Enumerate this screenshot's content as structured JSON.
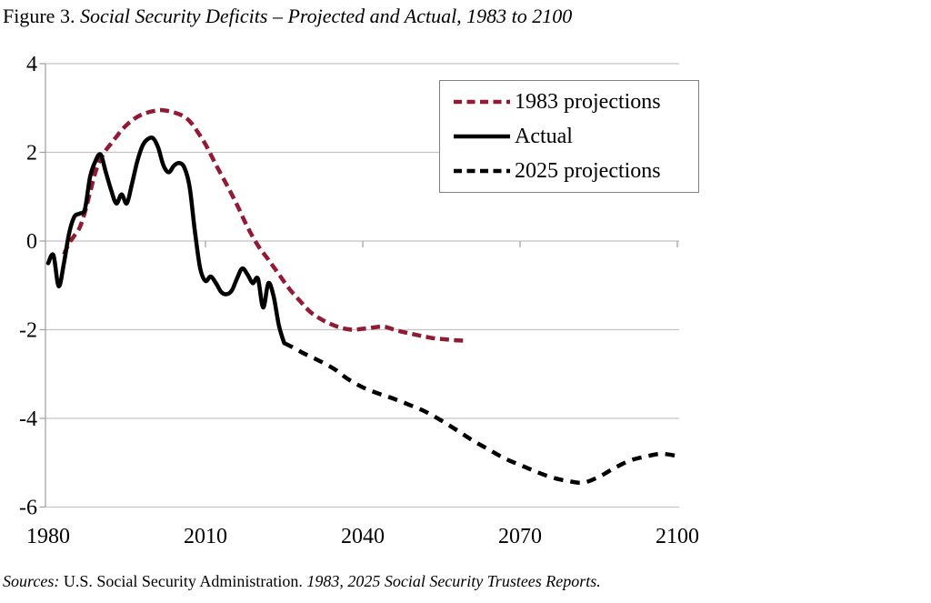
{
  "title": {
    "prefix": "Figure 3.",
    "italic": " Social Security Deficits – Projected and Actual, 1983 to 2100"
  },
  "source": {
    "label_italic": "Sources:",
    "normal": " U.S. Social Security Administration. ",
    "refs_italic": "1983, 2025 Social Security Trustees Reports."
  },
  "chart_data": {
    "type": "line",
    "title": "Figure 3. Social Security Deficits – Projected and Actual, 1983 to 2100",
    "xlabel": "",
    "ylabel": "",
    "x_range": [
      1980,
      2100
    ],
    "ylim": [
      -6,
      4
    ],
    "x_ticks": [
      1980,
      2010,
      2040,
      2070,
      2100
    ],
    "y_ticks": [
      4,
      2,
      0,
      -2,
      -4,
      -6
    ],
    "grid": true,
    "legend_position": "upper right",
    "colors": {
      "projection_1983": "#911a35",
      "actual": "#000000",
      "projection_2025": "#000000",
      "gridline": "#c4c4c4",
      "axis": "#9e9e9e"
    },
    "series": [
      {
        "name": "1983 projections",
        "style": "dashed",
        "color": "#911a35",
        "points": [
          [
            1983,
            -0.3
          ],
          [
            1984,
            -0.05
          ],
          [
            1985,
            0.12
          ],
          [
            1986,
            0.3
          ],
          [
            1987,
            0.65
          ],
          [
            1988,
            1.1
          ],
          [
            1989,
            1.55
          ],
          [
            1990,
            1.85
          ],
          [
            1991,
            2.05
          ],
          [
            1992,
            2.2
          ],
          [
            1993,
            2.35
          ],
          [
            1994,
            2.5
          ],
          [
            1995,
            2.62
          ],
          [
            1996,
            2.72
          ],
          [
            1997,
            2.8
          ],
          [
            1998,
            2.86
          ],
          [
            1999,
            2.9
          ],
          [
            2000,
            2.93
          ],
          [
            2001,
            2.95
          ],
          [
            2002,
            2.95
          ],
          [
            2003,
            2.93
          ],
          [
            2004,
            2.9
          ],
          [
            2005,
            2.86
          ],
          [
            2006,
            2.8
          ],
          [
            2007,
            2.7
          ],
          [
            2008,
            2.55
          ],
          [
            2010,
            2.18
          ],
          [
            2012,
            1.72
          ],
          [
            2014,
            1.28
          ],
          [
            2016,
            0.82
          ],
          [
            2018,
            0.32
          ],
          [
            2020,
            -0.1
          ],
          [
            2022,
            -0.42
          ],
          [
            2024,
            -0.75
          ],
          [
            2026,
            -1.08
          ],
          [
            2028,
            -1.35
          ],
          [
            2030,
            -1.6
          ],
          [
            2032,
            -1.76
          ],
          [
            2034,
            -1.88
          ],
          [
            2036,
            -1.96
          ],
          [
            2038,
            -2.0
          ],
          [
            2040,
            -1.98
          ],
          [
            2042,
            -1.95
          ],
          [
            2044,
            -1.93
          ],
          [
            2046,
            -2.0
          ],
          [
            2048,
            -2.06
          ],
          [
            2050,
            -2.11
          ],
          [
            2052,
            -2.16
          ],
          [
            2054,
            -2.2
          ],
          [
            2056,
            -2.22
          ],
          [
            2058,
            -2.24
          ],
          [
            2060,
            -2.25
          ]
        ]
      },
      {
        "name": "Actual",
        "style": "solid",
        "color": "#000000",
        "points": [
          [
            1980,
            -0.5
          ],
          [
            1981,
            -0.32
          ],
          [
            1982,
            -1.02
          ],
          [
            1983,
            -0.5
          ],
          [
            1984,
            0.18
          ],
          [
            1985,
            0.55
          ],
          [
            1986,
            0.62
          ],
          [
            1987,
            0.72
          ],
          [
            1988,
            1.45
          ],
          [
            1989,
            1.8
          ],
          [
            1990,
            1.95
          ],
          [
            1991,
            1.55
          ],
          [
            1992,
            1.15
          ],
          [
            1993,
            0.85
          ],
          [
            1994,
            1.05
          ],
          [
            1995,
            0.85
          ],
          [
            1996,
            1.3
          ],
          [
            1997,
            1.8
          ],
          [
            1998,
            2.15
          ],
          [
            1999,
            2.3
          ],
          [
            2000,
            2.32
          ],
          [
            2001,
            2.1
          ],
          [
            2002,
            1.7
          ],
          [
            2003,
            1.55
          ],
          [
            2004,
            1.7
          ],
          [
            2005,
            1.76
          ],
          [
            2006,
            1.65
          ],
          [
            2007,
            1.2
          ],
          [
            2008,
            0.2
          ],
          [
            2009,
            -0.62
          ],
          [
            2010,
            -0.9
          ],
          [
            2011,
            -0.8
          ],
          [
            2012,
            -0.95
          ],
          [
            2013,
            -1.15
          ],
          [
            2014,
            -1.2
          ],
          [
            2015,
            -1.12
          ],
          [
            2016,
            -0.85
          ],
          [
            2017,
            -0.62
          ],
          [
            2018,
            -0.75
          ],
          [
            2019,
            -0.95
          ],
          [
            2020,
            -0.85
          ],
          [
            2021,
            -1.5
          ],
          [
            2022,
            -0.95
          ],
          [
            2023,
            -1.25
          ],
          [
            2024,
            -1.9
          ],
          [
            2025,
            -2.3
          ]
        ]
      },
      {
        "name": "2025 projections",
        "style": "dashed",
        "color": "#000000",
        "points": [
          [
            2025,
            -2.3
          ],
          [
            2027,
            -2.42
          ],
          [
            2029,
            -2.55
          ],
          [
            2031,
            -2.66
          ],
          [
            2033,
            -2.78
          ],
          [
            2035,
            -2.92
          ],
          [
            2037,
            -3.1
          ],
          [
            2040,
            -3.3
          ],
          [
            2043,
            -3.44
          ],
          [
            2046,
            -3.56
          ],
          [
            2049,
            -3.7
          ],
          [
            2052,
            -3.85
          ],
          [
            2055,
            -4.05
          ],
          [
            2058,
            -4.27
          ],
          [
            2061,
            -4.5
          ],
          [
            2064,
            -4.7
          ],
          [
            2067,
            -4.9
          ],
          [
            2070,
            -5.05
          ],
          [
            2073,
            -5.2
          ],
          [
            2076,
            -5.33
          ],
          [
            2079,
            -5.41
          ],
          [
            2082,
            -5.45
          ],
          [
            2085,
            -5.32
          ],
          [
            2088,
            -5.12
          ],
          [
            2091,
            -4.95
          ],
          [
            2094,
            -4.86
          ],
          [
            2097,
            -4.8
          ],
          [
            2100,
            -4.85
          ]
        ]
      }
    ]
  }
}
